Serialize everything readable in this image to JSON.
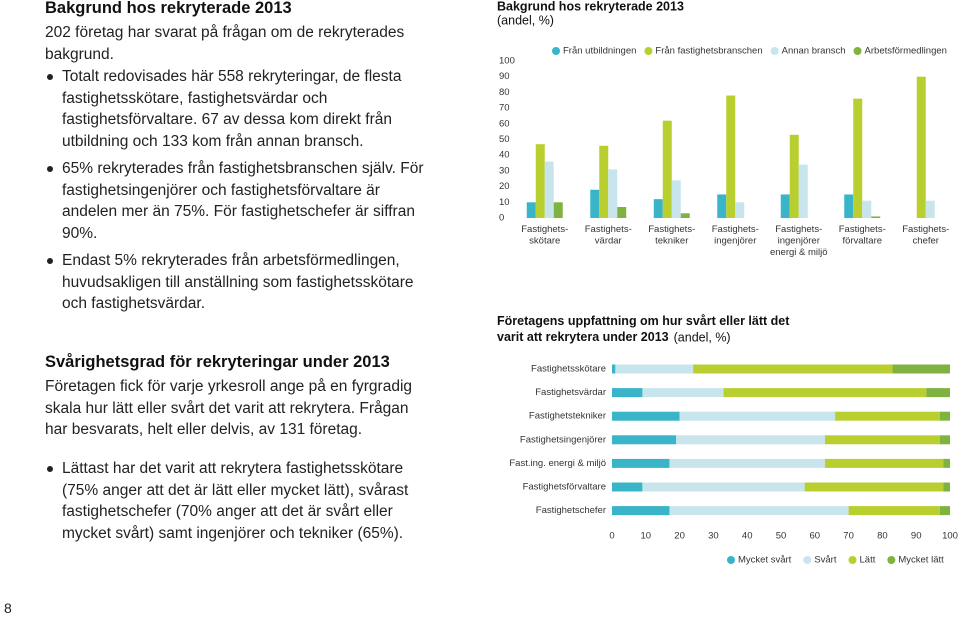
{
  "document": {
    "heading1": "Bakgrund hos rekryterade 2013",
    "intro": "202 företag har svarat på frågan om de rekryterades bakgrund.",
    "bullets1": [
      "Totalt redovisades här 558 rekryteringar, de flesta fastighetsskötare, fastighetsvärdar och fastighetsförvaltare. 67 av dessa kom direkt från utbildning och 133 kom från annan bransch.",
      "65% rekryterades från fastighetsbranschen själv. För fastighetsingenjörer och fastighetsförvaltare är andelen mer än 75%. För fastighetschefer är siffran 90%.",
      "Endast 5% rekryterades från arbetsförmedlingen, huvudsakligen till anställning som fastighetsskötare och fastighetsvärdar."
    ],
    "heading2": "Svårighetsgrad för rekryteringar under 2013",
    "paragraph2": "Företagen fick för varje yrkesroll ange på en fyrgradig skala hur lätt eller svårt det varit att rekrytera. Frågan har besvarats, helt eller delvis, av 131 företag.",
    "bullets2": [
      "Lättast har det varit att rekrytera fastighetsskötare (75% anger att det är lätt eller mycket lätt), svårast fastighetschefer (70% anger att det är svårt eller mycket svårt) samt ingenjörer och tekniker (65%)."
    ],
    "page_number": "8"
  },
  "chart_data": [
    {
      "type": "bar",
      "title": "Bakgrund hos rekryterade 2013",
      "subtitle": "(andel, %)",
      "categories": [
        "Fastighets-\nskötare",
        "Fastighets-\nvärdar",
        "Fastighets-\ntekniker",
        "Fastighets-\ningenjörer",
        "Fastighets-\ningenjörer\nenergi & miljö",
        "Fastighets-\nförvaltare",
        "Fastighets-\nchefer"
      ],
      "series": [
        {
          "name": "Från utbildningen",
          "color": "#3ab4c9",
          "values": [
            10,
            18,
            12,
            15,
            15,
            15,
            0
          ]
        },
        {
          "name": "Från fastighetsbranschen",
          "color": "#b9cf2f",
          "values": [
            47,
            46,
            62,
            78,
            53,
            76,
            90
          ]
        },
        {
          "name": "Annan bransch",
          "color": "#c8e5ee",
          "values": [
            36,
            31,
            24,
            10,
            34,
            11,
            11
          ]
        },
        {
          "name": "Arbetsförmedlingen",
          "color": "#7fb241",
          "values": [
            10,
            7,
            3,
            0,
            0,
            1,
            0
          ]
        }
      ],
      "ylim": [
        0,
        100
      ],
      "yticks": [
        0,
        10,
        20,
        30,
        40,
        50,
        60,
        70,
        80,
        90,
        100
      ],
      "grid": false,
      "legend": "top"
    },
    {
      "type": "stacked-barh",
      "title": "Företagens uppfattning om hur svårt eller lätt det varit att rekrytera under 2013",
      "subtitle": "(andel, %)",
      "categories": [
        "Fastighetsskötare",
        "Fastighetsvärdar",
        "Fastighetstekniker",
        "Fastighetsingenjörer",
        "Fast.ing. energi & miljö",
        "Fastighetsförvaltare",
        "Fastighetschefer"
      ],
      "series": [
        {
          "name": "Mycket svårt",
          "color": "#3ab4c9",
          "values": [
            1,
            9,
            20,
            19,
            17,
            9,
            17
          ]
        },
        {
          "name": "Svårt",
          "color": "#c8e5ee",
          "values": [
            23,
            24,
            46,
            44,
            46,
            48,
            53
          ]
        },
        {
          "name": "Lätt",
          "color": "#b9cf2f",
          "values": [
            59,
            60,
            31,
            34,
            35,
            41,
            27
          ]
        },
        {
          "name": "Mycket lätt",
          "color": "#7fb241",
          "values": [
            17,
            7,
            3,
            3,
            2,
            2,
            3
          ]
        }
      ],
      "xlim": [
        0,
        100
      ],
      "xticks": [
        0,
        10,
        20,
        30,
        40,
        50,
        60,
        70,
        80,
        90,
        100
      ],
      "grid": false,
      "legend": "bottom"
    }
  ]
}
